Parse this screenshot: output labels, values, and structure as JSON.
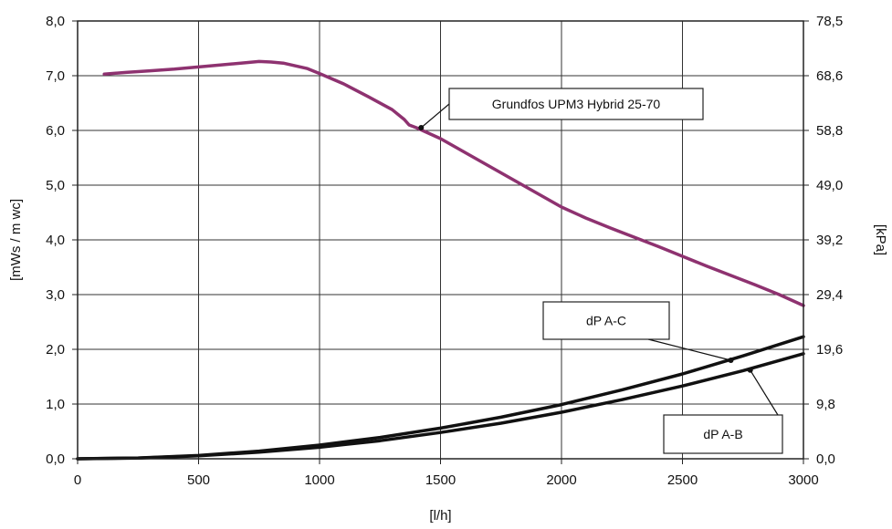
{
  "chart_data": {
    "type": "line",
    "title": "",
    "xlabel": "[l/h]",
    "ylabel": "[mWs / m wc]",
    "ylabel_right": "[kPa]",
    "xlim": [
      0,
      3000
    ],
    "ylim": [
      0,
      8
    ],
    "x_ticks": [
      "0",
      "500",
      "1000",
      "1500",
      "2000",
      "2500",
      "3000"
    ],
    "y_ticks": [
      "0,0",
      "1,0",
      "2,0",
      "3,0",
      "4,0",
      "5,0",
      "6,0",
      "7,0",
      "8,0"
    ],
    "y_right_ticks": [
      "0,0",
      "9,8",
      "19,6",
      "29,4",
      "39,2",
      "49,0",
      "58,8",
      "68,6",
      "78,5"
    ],
    "grid": true,
    "series": [
      {
        "name": "Grundfos UPM3 Hybrid 25-70",
        "color": "#8e3270",
        "x": [
          110,
          200,
          300,
          400,
          500,
          600,
          700,
          750,
          800,
          850,
          900,
          950,
          1000,
          1100,
          1200,
          1300,
          1350,
          1370,
          1400,
          1500,
          1600,
          1700,
          1800,
          1900,
          2000,
          2100,
          2200,
          2300,
          2400,
          2500,
          2600,
          2700,
          2800,
          2900,
          3000
        ],
        "values": [
          7.03,
          7.06,
          7.09,
          7.12,
          7.16,
          7.2,
          7.24,
          7.26,
          7.25,
          7.23,
          7.18,
          7.13,
          7.04,
          6.85,
          6.62,
          6.38,
          6.2,
          6.1,
          6.05,
          5.85,
          5.6,
          5.35,
          5.1,
          4.85,
          4.6,
          4.4,
          4.22,
          4.05,
          3.88,
          3.7,
          3.52,
          3.35,
          3.18,
          3.0,
          2.8
        ]
      },
      {
        "name": "dP A-C",
        "color": "#111111",
        "x": [
          0,
          250,
          500,
          750,
          1000,
          1250,
          1500,
          1750,
          2000,
          2250,
          2500,
          2750,
          3000
        ],
        "values": [
          0.0,
          0.015,
          0.06,
          0.14,
          0.25,
          0.39,
          0.56,
          0.76,
          0.99,
          1.26,
          1.55,
          1.88,
          2.23
        ]
      },
      {
        "name": "dP A-B",
        "color": "#111111",
        "x": [
          0,
          250,
          500,
          750,
          1000,
          1250,
          1500,
          1750,
          2000,
          2250,
          2500,
          2750,
          3000
        ],
        "values": [
          0.0,
          0.013,
          0.053,
          0.12,
          0.21,
          0.33,
          0.48,
          0.65,
          0.85,
          1.08,
          1.33,
          1.61,
          1.92
        ]
      }
    ],
    "annotations": [
      {
        "text": "Grundfos UPM3 Hybrid 25-70",
        "series": 0,
        "point": [
          1420,
          6.05
        ]
      },
      {
        "text": "dP A-C",
        "series": 1,
        "point": [
          2700,
          1.8
        ]
      },
      {
        "text": "dP A-B",
        "series": 2,
        "point": [
          2780,
          1.62
        ]
      }
    ]
  }
}
